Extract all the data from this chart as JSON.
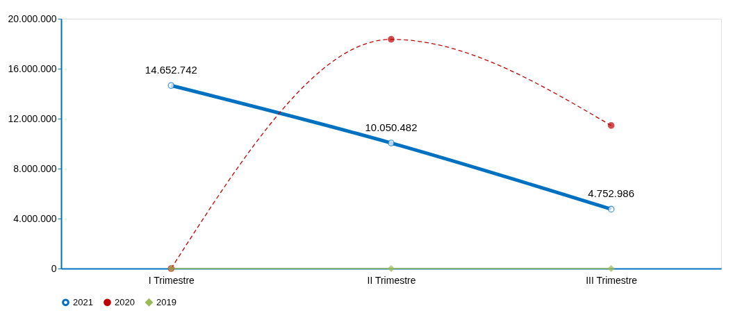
{
  "chart_data": {
    "type": "line",
    "categories": [
      "I Trimestre",
      "II Trimestre",
      "III Trimestre"
    ],
    "series": [
      {
        "name": "2021",
        "color": "#0070c0",
        "values": [
          14652742,
          10050482,
          4752986
        ],
        "value_labels": [
          "14.652.742",
          "10.050.482",
          "4.752.986"
        ],
        "line_style": "solid",
        "marker": "circle"
      },
      {
        "name": "2020",
        "color": "#c00000",
        "values": [
          0,
          18350000,
          11450000
        ],
        "line_style": "dashed",
        "marker": "circle"
      },
      {
        "name": "2019",
        "color": "#9bbb59",
        "values": [
          0,
          0,
          0
        ],
        "line_style": "solid",
        "marker": "diamond"
      }
    ],
    "ylim": [
      0,
      20000000
    ],
    "yticks": [
      {
        "value": 0,
        "label": "0"
      },
      {
        "value": 4000000,
        "label": "4.000.000"
      },
      {
        "value": 8000000,
        "label": "8.000.000"
      },
      {
        "value": 12000000,
        "label": "12.000.000"
      },
      {
        "value": 16000000,
        "label": "16.000.000"
      },
      {
        "value": 20000000,
        "label": "20.000.000"
      }
    ],
    "grid": false,
    "legend": "bottom"
  }
}
